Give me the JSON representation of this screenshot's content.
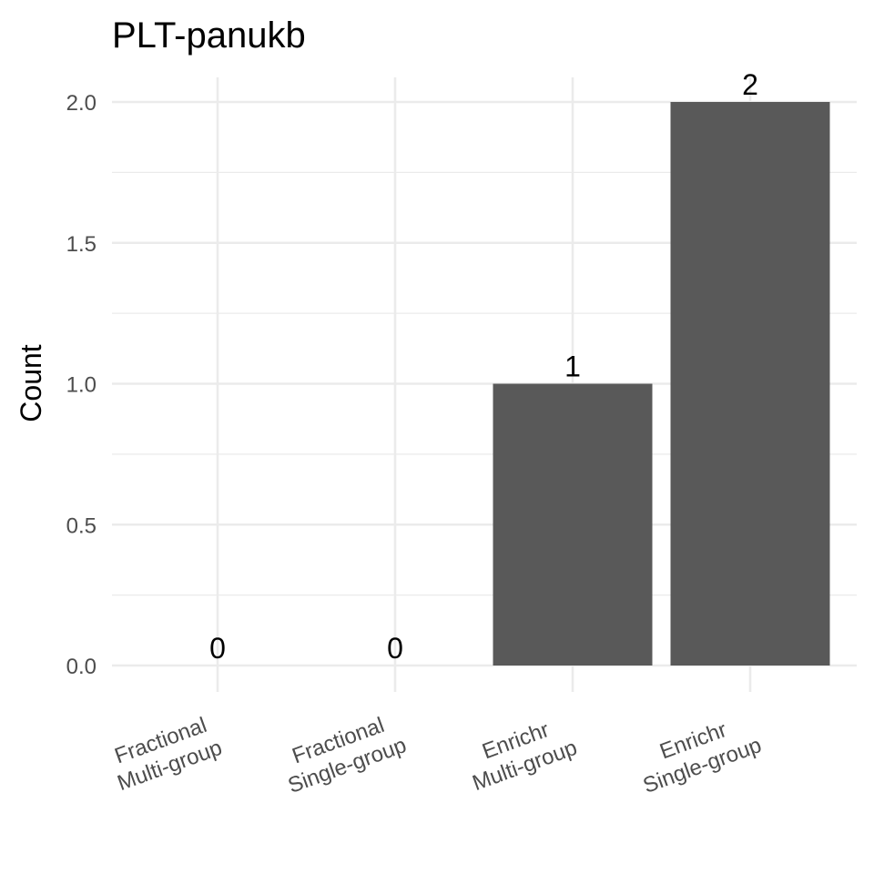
{
  "chart_data": {
    "type": "bar",
    "title": "PLT-panukb",
    "xlabel": "",
    "ylabel": "Count",
    "categories": [
      [
        "Fractional",
        "Multi-group"
      ],
      [
        "Fractional",
        "Single-group"
      ],
      [
        "Enrichr",
        "Multi-group"
      ],
      [
        "Enrichr",
        "Single-group"
      ]
    ],
    "values": [
      0,
      0,
      1,
      2
    ],
    "data_labels": [
      "0",
      "0",
      "1",
      "2"
    ],
    "ylim": [
      0,
      2.0
    ],
    "yticks": [
      0.0,
      0.5,
      1.0,
      1.5,
      2.0
    ],
    "ytick_labels": [
      "0.0",
      "0.5",
      "1.0",
      "1.5",
      "2.0"
    ],
    "grid": true,
    "legend": "none",
    "colors": {
      "bar": "#595959",
      "grid": "#ebebeb",
      "tick_text": "#4d4d4d"
    }
  }
}
